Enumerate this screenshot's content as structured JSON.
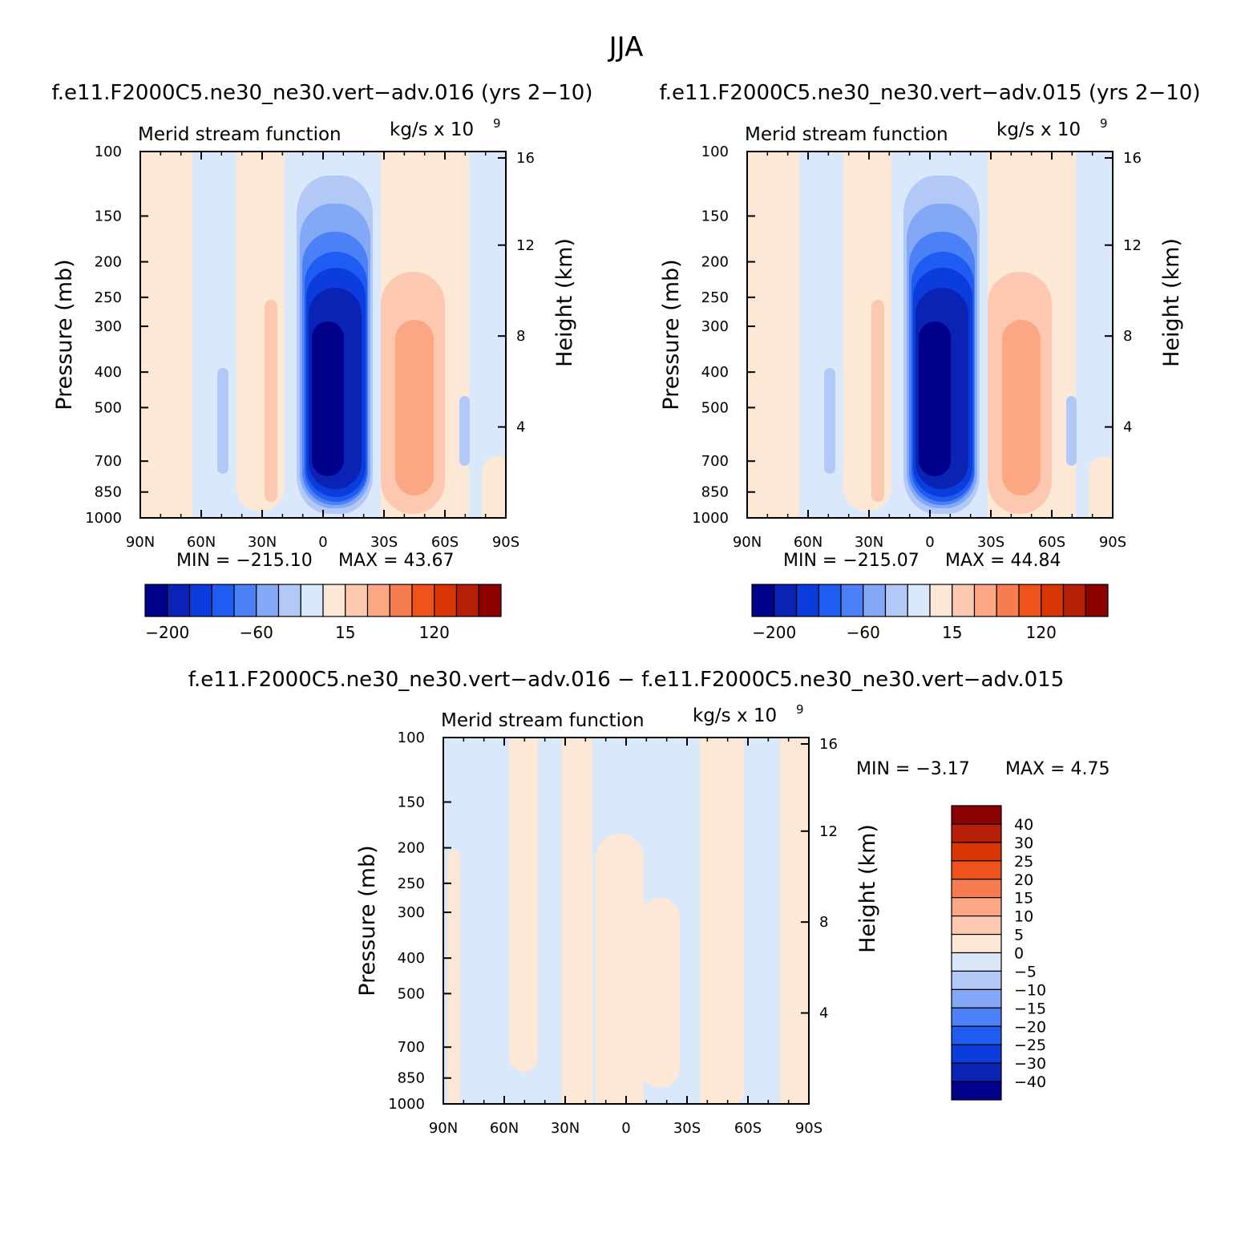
{
  "title": "JJA",
  "axis_labels": {
    "left": "Pressure (mb)",
    "right": "Height (km)",
    "subtitle_left": "Merid stream function",
    "units_base": "kg/s x 10",
    "units_exp": "9",
    "min_prefix": "MIN = ",
    "max_prefix": "MAX = "
  },
  "palette": {
    "colors": [
      "#00008b",
      "#0a23b4",
      "#0b3ddc",
      "#1f5cf2",
      "#4b80f6",
      "#82a8f6",
      "#b2c9f8",
      "#d9e8fb",
      "#fde7d5",
      "#fcc9b0",
      "#fba784",
      "#f77c4f",
      "#f0521c",
      "#d93405",
      "#b41f05",
      "#8b0000"
    ],
    "neutral_neg": "#d9e8fb",
    "neutral_pos": "#fde7d5"
  },
  "chart_data": [
    {
      "type": "heatmap",
      "title": "f.e11.F2000C5.ne30_ne30.vert−adv.016 (yrs 2−10)",
      "subtitle": "Merid stream function",
      "xlabel": "",
      "ylabel": "Pressure (mb)",
      "y2label": "Height (km)",
      "units": "kg/s x 10^9",
      "x_ticks": [
        "90N",
        "60N",
        "30N",
        "0",
        "30S",
        "60S",
        "90S"
      ],
      "y_ticks": [
        100,
        150,
        200,
        250,
        300,
        400,
        500,
        700,
        850,
        1000
      ],
      "y2_ticks": [
        4,
        8,
        12,
        16
      ],
      "ylim": [
        1000,
        100
      ],
      "y_scale": "log",
      "min_text": "−215.10",
      "max_text": "43.67",
      "colorbar_labels": [
        "−200",
        "−60",
        "15",
        "120"
      ]
    },
    {
      "type": "heatmap",
      "title": "f.e11.F2000C5.ne30_ne30.vert−adv.015 (yrs 2−10)",
      "subtitle": "Merid stream function",
      "xlabel": "",
      "ylabel": "Pressure (mb)",
      "y2label": "Height (km)",
      "units": "kg/s x 10^9",
      "x_ticks": [
        "90N",
        "60N",
        "30N",
        "0",
        "30S",
        "60S",
        "90S"
      ],
      "y_ticks": [
        100,
        150,
        200,
        250,
        300,
        400,
        500,
        700,
        850,
        1000
      ],
      "y2_ticks": [
        4,
        8,
        12,
        16
      ],
      "ylim": [
        1000,
        100
      ],
      "y_scale": "log",
      "min_text": "−215.07",
      "max_text": "44.84",
      "colorbar_labels": [
        "−200",
        "−60",
        "15",
        "120"
      ]
    },
    {
      "type": "heatmap",
      "title": "f.e11.F2000C5.ne30_ne30.vert−adv.016 − f.e11.F2000C5.ne30_ne30.vert−adv.015",
      "subtitle": "Merid stream function",
      "xlabel": "",
      "ylabel": "Pressure (mb)",
      "y2label": "Height (km)",
      "units": "kg/s x 10^9",
      "x_ticks": [
        "90N",
        "60N",
        "30N",
        "0",
        "30S",
        "60S",
        "90S"
      ],
      "y_ticks": [
        100,
        150,
        200,
        250,
        300,
        400,
        500,
        700,
        850,
        1000
      ],
      "y2_ticks": [
        4,
        8,
        12,
        16
      ],
      "ylim": [
        1000,
        100
      ],
      "y_scale": "log",
      "min_text": "−3.17",
      "max_text": "4.75",
      "colorbar_labels": [
        "40",
        "30",
        "25",
        "20",
        "15",
        "10",
        "5",
        "0",
        "−5",
        "−10",
        "−15",
        "−20",
        "−25",
        "−30",
        "−40"
      ]
    }
  ]
}
